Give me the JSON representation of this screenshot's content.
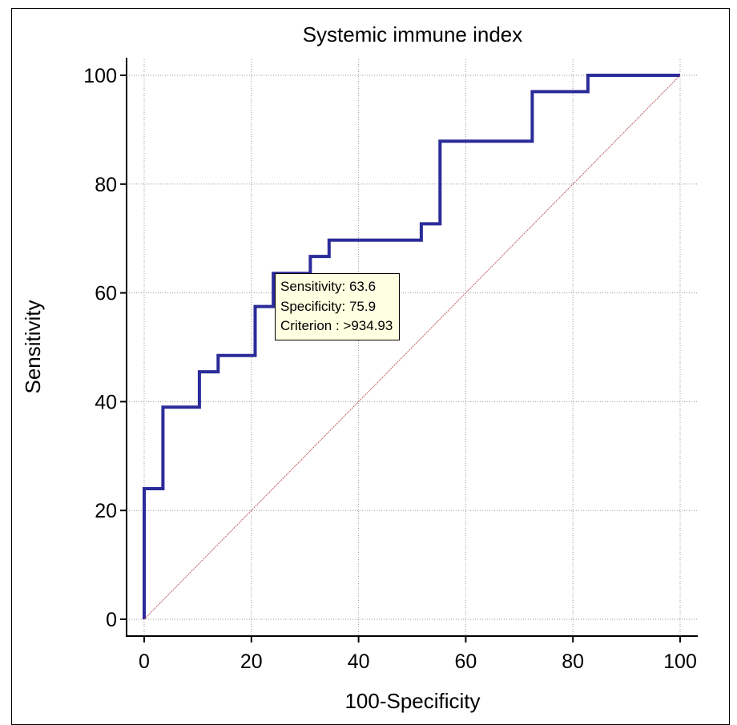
{
  "chart_data": {
    "type": "line",
    "title": "Systemic immune index",
    "xlabel": "100-Specificity",
    "ylabel": "Sensitivity",
    "xlim": [
      0,
      100
    ],
    "ylim": [
      0,
      100
    ],
    "x_ticks": [
      0,
      20,
      40,
      60,
      80,
      100
    ],
    "y_ticks": [
      0,
      20,
      40,
      60,
      80,
      100
    ],
    "grid": true,
    "series": [
      {
        "color": "#2b2b9a",
        "points": [
          [
            0,
            0
          ],
          [
            0,
            24
          ],
          [
            3.5,
            24
          ],
          [
            3.5,
            39
          ],
          [
            10.3,
            39
          ],
          [
            10.3,
            45.5
          ],
          [
            13.8,
            45.5
          ],
          [
            13.8,
            48.5
          ],
          [
            20.7,
            48.5
          ],
          [
            20.7,
            57.5
          ],
          [
            24.1,
            57.5
          ],
          [
            24.1,
            63.6
          ],
          [
            31,
            63.6
          ],
          [
            31,
            66.7
          ],
          [
            34.5,
            66.7
          ],
          [
            34.5,
            69.7
          ],
          [
            51.7,
            69.7
          ],
          [
            51.7,
            72.7
          ],
          [
            55.2,
            72.7
          ],
          [
            55.2,
            87.9
          ],
          [
            72.4,
            87.9
          ],
          [
            72.4,
            97
          ],
          [
            82.8,
            97
          ],
          [
            82.8,
            100
          ],
          [
            100,
            100
          ]
        ]
      },
      {
        "color": "#c06060",
        "style": "dotted",
        "points": [
          [
            0,
            0
          ],
          [
            100,
            100
          ]
        ]
      }
    ],
    "annotation": {
      "lines": [
        "Sensitivity: 63.6",
        "Specificity: 75.9",
        "Criterion : >934.93"
      ]
    }
  }
}
